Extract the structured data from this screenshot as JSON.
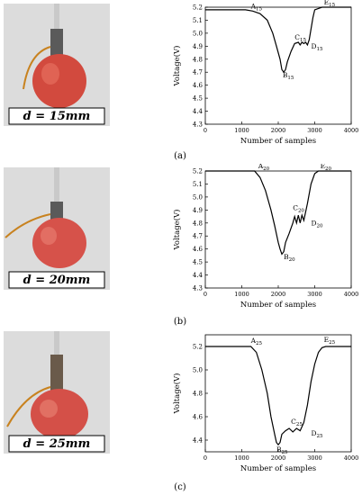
{
  "panels": [
    {
      "id": "a",
      "caption": "(a)",
      "photo_label": "d = 15mm",
      "chart_data": {
        "type": "line",
        "xlabel": "Number of samples",
        "ylabel": "Voltage(V)",
        "xlim": [
          0,
          4000
        ],
        "ylim": [
          4.3,
          5.2
        ],
        "xticks": [
          0,
          1000,
          2000,
          3000,
          4000
        ],
        "yticks": [
          4.3,
          4.4,
          4.5,
          4.6,
          4.7,
          4.8,
          4.9,
          5.0,
          5.1,
          5.2
        ],
        "series": [
          {
            "x": [
              0,
              1100,
              1300,
              1500,
              1700,
              1850,
              1950,
              2050,
              2100,
              2150,
              2200,
              2250,
              2350,
              2450,
              2550,
              2600,
              2650,
              2700,
              2750,
              2800,
              2850,
              2950,
              3000,
              3100,
              3200,
              3300,
              4000
            ],
            "y": [
              5.18,
              5.18,
              5.17,
              5.15,
              5.1,
              5.0,
              4.9,
              4.8,
              4.72,
              4.7,
              4.72,
              4.78,
              4.86,
              4.92,
              4.93,
              4.91,
              4.93,
              4.92,
              4.93,
              4.91,
              4.95,
              5.12,
              5.18,
              5.19,
              5.2,
              5.2,
              5.2
            ]
          }
        ],
        "annotations": [
          {
            "letter": "A",
            "sub": "15",
            "x": 1250,
            "y": 5.19
          },
          {
            "letter": "B",
            "sub": "15",
            "x": 2120,
            "y": 4.66
          },
          {
            "letter": "C",
            "sub": "15",
            "x": 2450,
            "y": 4.95
          },
          {
            "letter": "D",
            "sub": "15",
            "x": 2900,
            "y": 4.88
          },
          {
            "letter": "E",
            "sub": "15",
            "x": 3250,
            "y": 5.22
          }
        ]
      }
    },
    {
      "id": "b",
      "caption": "(b)",
      "photo_label": "d = 20mm",
      "chart_data": {
        "type": "line",
        "xlabel": "Number of samples",
        "ylabel": "Voltage(V)",
        "xlim": [
          0,
          4000
        ],
        "ylim": [
          4.3,
          5.2
        ],
        "xticks": [
          0,
          1000,
          2000,
          3000,
          4000
        ],
        "yticks": [
          4.3,
          4.4,
          4.5,
          4.6,
          4.7,
          4.8,
          4.9,
          5.0,
          5.1,
          5.2
        ],
        "series": [
          {
            "x": [
              0,
              1350,
              1500,
              1650,
              1800,
              1900,
              2000,
              2050,
              2100,
              2150,
              2200,
              2300,
              2400,
              2450,
              2500,
              2550,
              2600,
              2650,
              2700,
              2800,
              2900,
              3000,
              3100,
              4000
            ],
            "y": [
              5.2,
              5.2,
              5.15,
              5.05,
              4.9,
              4.78,
              4.65,
              4.6,
              4.56,
              4.58,
              4.65,
              4.72,
              4.8,
              4.85,
              4.8,
              4.86,
              4.8,
              4.86,
              4.82,
              4.95,
              5.1,
              5.18,
              5.2,
              5.2
            ]
          }
        ],
        "annotations": [
          {
            "letter": "A",
            "sub": "20",
            "x": 1450,
            "y": 5.22
          },
          {
            "letter": "B",
            "sub": "20",
            "x": 2150,
            "y": 4.52
          },
          {
            "letter": "C",
            "sub": "20",
            "x": 2400,
            "y": 4.9
          },
          {
            "letter": "D",
            "sub": "20",
            "x": 2900,
            "y": 4.78
          },
          {
            "letter": "E",
            "sub": "20",
            "x": 3150,
            "y": 5.22
          }
        ]
      }
    },
    {
      "id": "c",
      "caption": "(c)",
      "photo_label": "d = 25mm",
      "chart_data": {
        "type": "line",
        "xlabel": "Number of samples",
        "ylabel": "Voltage(V)",
        "xlim": [
          0,
          4000
        ],
        "ylim": [
          4.3,
          5.3
        ],
        "xticks": [
          0,
          1000,
          2000,
          3000,
          4000
        ],
        "yticks": [
          4.4,
          4.6,
          4.8,
          5.0,
          5.2
        ],
        "series": [
          {
            "x": [
              0,
              1250,
              1400,
              1550,
              1700,
              1800,
              1900,
              1950,
              2000,
              2050,
              2100,
              2200,
              2300,
              2400,
              2500,
              2600,
              2700,
              2800,
              2900,
              3000,
              3100,
              3200,
              3300,
              4000
            ],
            "y": [
              5.2,
              5.2,
              5.15,
              5.0,
              4.8,
              4.6,
              4.45,
              4.38,
              4.36,
              4.38,
              4.45,
              4.48,
              4.5,
              4.47,
              4.5,
              4.48,
              4.55,
              4.7,
              4.9,
              5.05,
              5.15,
              5.19,
              5.2,
              5.2
            ]
          }
        ],
        "annotations": [
          {
            "letter": "A",
            "sub": "25",
            "x": 1250,
            "y": 5.23
          },
          {
            "letter": "B",
            "sub": "25",
            "x": 1950,
            "y": 4.3
          },
          {
            "letter": "C",
            "sub": "25",
            "x": 2350,
            "y": 4.54
          },
          {
            "letter": "D",
            "sub": "25",
            "x": 2900,
            "y": 4.44
          },
          {
            "letter": "E",
            "sub": "25",
            "x": 3250,
            "y": 5.24
          }
        ]
      }
    }
  ]
}
